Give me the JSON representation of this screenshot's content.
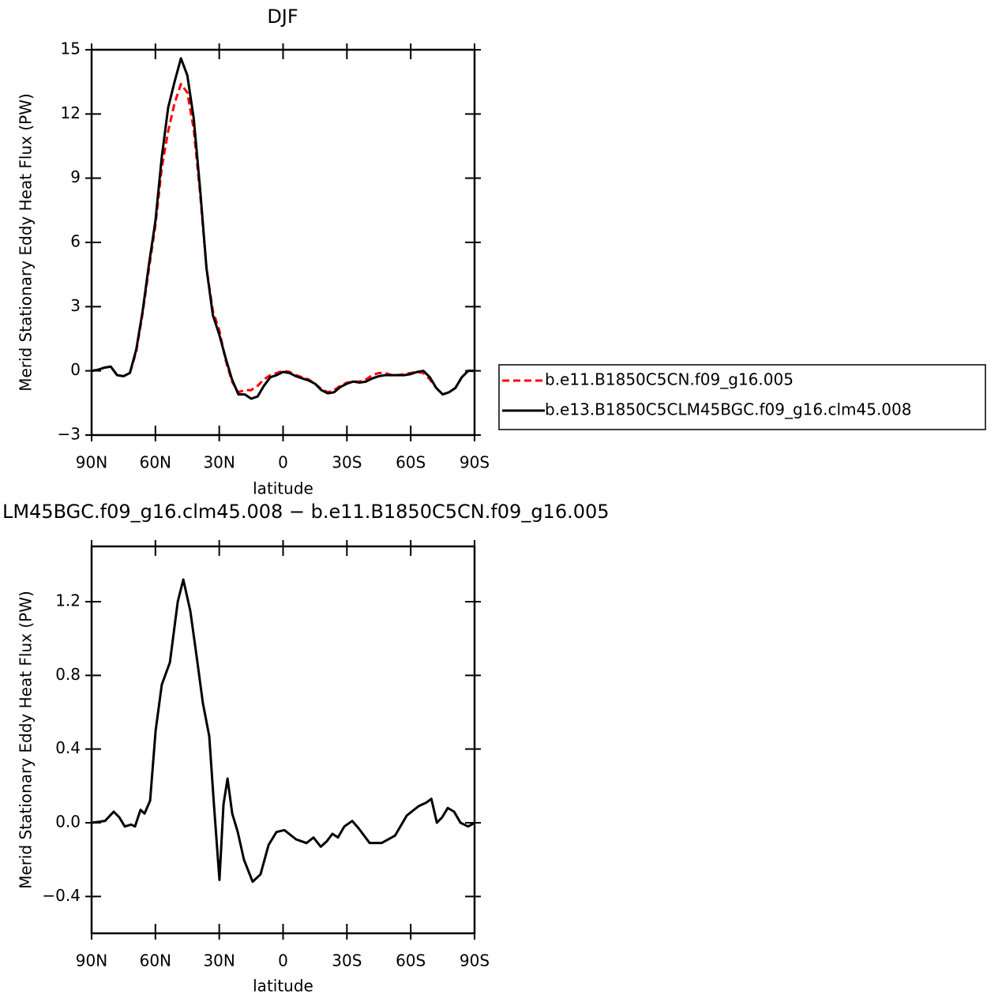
{
  "chart_data": [
    {
      "type": "line",
      "title": "DJF",
      "xlabel": "latitude",
      "ylabel": "Merid Stationary Eddy Heat Flux (PW)",
      "x": [
        90,
        87,
        84,
        81,
        78,
        75,
        72,
        69,
        66,
        63,
        60,
        57,
        54,
        51,
        48,
        45,
        42,
        39,
        36,
        33,
        30,
        27,
        24,
        21,
        18,
        15,
        12,
        9,
        6,
        3,
        0,
        -3,
        -6,
        -9,
        -12,
        -15,
        -18,
        -21,
        -24,
        -27,
        -30,
        -33,
        -36,
        -39,
        -42,
        -45,
        -48,
        -51,
        -54,
        -57,
        -60,
        -63,
        -66,
        -69,
        -72,
        -75,
        -78,
        -81,
        -84,
        -87,
        -90
      ],
      "series": [
        {
          "name": "b.e11.B1850C5CN.f09_g16.005",
          "color": "#ff0000",
          "dash": true,
          "values": [
            0,
            0.05,
            0.15,
            0.2,
            -0.2,
            -0.25,
            -0.1,
            0.9,
            2.7,
            4.8,
            6.8,
            9.5,
            11.2,
            12.5,
            13.4,
            13.0,
            11.3,
            8.3,
            4.8,
            2.8,
            1.9,
            0.5,
            -0.5,
            -1.0,
            -0.9,
            -0.9,
            -0.7,
            -0.4,
            -0.2,
            -0.1,
            0,
            -0.05,
            -0.2,
            -0.3,
            -0.4,
            -0.6,
            -0.85,
            -1.0,
            -0.9,
            -0.7,
            -0.55,
            -0.5,
            -0.5,
            -0.4,
            -0.2,
            -0.1,
            -0.1,
            -0.2,
            -0.2,
            -0.15,
            -0.1,
            -0.05,
            -0.1,
            -0.4,
            -0.8,
            -1.1,
            -1.0,
            -0.8,
            -0.3,
            0,
            0
          ]
        },
        {
          "name": "b.e13.B1850C5CLM45BGC.f09_g16.clm45.008",
          "color": "#000000",
          "dash": false,
          "values": [
            0,
            0.05,
            0.15,
            0.2,
            -0.2,
            -0.25,
            -0.1,
            1.0,
            2.8,
            5.0,
            7.0,
            10.0,
            12.3,
            13.5,
            14.6,
            13.8,
            11.8,
            8.5,
            4.8,
            2.6,
            1.7,
            0.6,
            -0.4,
            -1.1,
            -1.1,
            -1.3,
            -1.2,
            -0.7,
            -0.3,
            -0.2,
            -0.05,
            -0.1,
            -0.25,
            -0.35,
            -0.45,
            -0.6,
            -0.9,
            -1.05,
            -1.0,
            -0.75,
            -0.6,
            -0.5,
            -0.55,
            -0.5,
            -0.35,
            -0.25,
            -0.2,
            -0.2,
            -0.2,
            -0.2,
            -0.15,
            -0.05,
            0.0,
            -0.3,
            -0.8,
            -1.1,
            -1.0,
            -0.8,
            -0.3,
            0,
            0
          ]
        }
      ],
      "xlim": [
        90,
        -90
      ],
      "xticks": [
        {
          "value": 90,
          "label": "90N"
        },
        {
          "value": 60,
          "label": "60N"
        },
        {
          "value": 30,
          "label": "30N"
        },
        0,
        {
          "value": -30,
          "label": "30S"
        },
        {
          "value": -60,
          "label": "60S"
        },
        {
          "value": -90,
          "label": "90S"
        }
      ],
      "ylim": [
        -3,
        15
      ],
      "yticks": [
        {
          "value": -3,
          "label": "−3"
        },
        0,
        3,
        6,
        9,
        12,
        15
      ],
      "legend": "right"
    },
    {
      "type": "line",
      "title": "LM45BGC.f09_g16.clm45.008 − b.e11.B1850C5CN.f09_g16.005",
      "xlabel": "latitude",
      "ylabel": "Merid Stationary Eddy Heat Flux (PW)",
      "x": [
        90,
        83.7,
        79.6,
        77,
        74.4,
        71.4,
        69.6,
        67,
        65.1,
        62.5,
        59.9,
        57,
        53.2,
        49.5,
        46.9,
        43.6,
        40.6,
        37.7,
        34.7,
        32.5,
        29.9,
        28,
        26.1,
        23.9,
        21.3,
        18.4,
        14.3,
        10.6,
        6.8,
        3.1,
        -0.6,
        -6.1,
        -11,
        -14.3,
        -17.7,
        -20.6,
        -23.2,
        -25.8,
        -28.8,
        -32.5,
        -35.5,
        -40.7,
        -46.3,
        -52.6,
        -58.2,
        -63.7,
        -67.4,
        -69.7,
        -72.3,
        -74.8,
        -77.4,
        -80.4,
        -83.4,
        -87,
        -90
      ],
      "values": [
        0,
        0.01,
        0.06,
        0.03,
        -0.02,
        -0.01,
        -0.02,
        0.07,
        0.05,
        0.12,
        0.5,
        0.75,
        0.87,
        1.2,
        1.32,
        1.15,
        0.9,
        0.65,
        0.47,
        0.1,
        -0.31,
        0.1,
        0.24,
        0.05,
        -0.05,
        -0.2,
        -0.32,
        -0.28,
        -0.12,
        -0.05,
        -0.04,
        -0.09,
        -0.11,
        -0.08,
        -0.13,
        -0.1,
        -0.06,
        -0.08,
        -0.02,
        0.01,
        -0.03,
        -0.11,
        -0.11,
        -0.07,
        0.04,
        0.09,
        0.11,
        0.13,
        0.0,
        0.03,
        0.08,
        0.06,
        0.0,
        -0.02,
        0
      ],
      "color": "#000000",
      "xlim": [
        90,
        -90
      ],
      "xticks": [
        {
          "value": 90,
          "label": "90N"
        },
        {
          "value": 60,
          "label": "60N"
        },
        {
          "value": 30,
          "label": "30N"
        },
        0,
        {
          "value": -30,
          "label": "30S"
        },
        {
          "value": -60,
          "label": "60S"
        },
        {
          "value": -90,
          "label": "90S"
        }
      ],
      "ylim": [
        -0.6,
        1.5
      ],
      "yticks": [
        {
          "value": -0.4,
          "label": "−0.4"
        },
        {
          "value": 0,
          "label": "0.0"
        },
        0.4,
        0.8,
        1.2
      ]
    }
  ]
}
